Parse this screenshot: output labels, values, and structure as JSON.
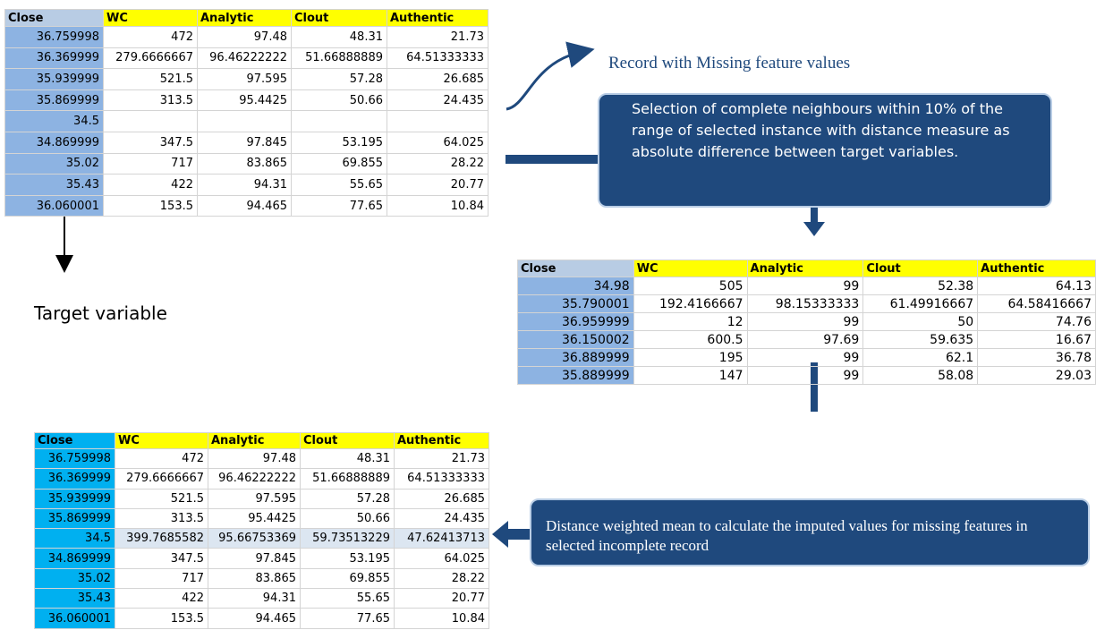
{
  "tables": [
    {
      "headers": [
        "Close",
        "WC",
        "Analytic",
        "Clout",
        "Authentic"
      ],
      "rows": [
        [
          "36.759998",
          "472",
          "97.48",
          "48.31",
          "21.73"
        ],
        [
          "36.369999",
          "279.6666667",
          "96.46222222",
          "51.66888889",
          "64.51333333"
        ],
        [
          "35.939999",
          "521.5",
          "97.595",
          "57.28",
          "26.685"
        ],
        [
          "35.869999",
          "313.5",
          "95.4425",
          "50.66",
          "24.435"
        ],
        [
          "34.5"
        ],
        [
          "34.869999",
          "347.5",
          "97.845",
          "53.195",
          "64.025"
        ],
        [
          "35.02",
          "717",
          "83.865",
          "69.855",
          "28.22"
        ],
        [
          "35.43",
          "422",
          "94.31",
          "55.65",
          "20.77"
        ],
        [
          "36.060001",
          "153.5",
          "94.465",
          "77.65",
          "10.84"
        ]
      ]
    },
    {
      "headers": [
        "Close",
        "WC",
        "Analytic",
        "Clout",
        "Authentic"
      ],
      "rows": [
        [
          "34.98",
          "505",
          "99",
          "52.38",
          "64.13"
        ],
        [
          "35.790001",
          "192.4166667",
          "98.15333333",
          "61.49916667",
          "64.58416667"
        ],
        [
          "36.959999",
          "12",
          "99",
          "50",
          "74.76"
        ],
        [
          "36.150002",
          "600.5",
          "97.69",
          "59.635",
          "16.67"
        ],
        [
          "36.889999",
          "195",
          "99",
          "62.1",
          "36.78"
        ],
        [
          "35.889999",
          "147",
          "99",
          "58.08",
          "29.03"
        ]
      ]
    },
    {
      "headers": [
        "Close",
        "WC",
        "Analytic",
        "Clout",
        "Authentic"
      ],
      "rows": [
        [
          "36.759998",
          "472",
          "97.48",
          "48.31",
          "21.73"
        ],
        [
          "36.369999",
          "279.6666667",
          "96.46222222",
          "51.66888889",
          "64.51333333"
        ],
        [
          "35.939999",
          "521.5",
          "97.595",
          "57.28",
          "26.685"
        ],
        [
          "35.869999",
          "313.5",
          "95.4425",
          "50.66",
          "24.435"
        ],
        [
          "34.5",
          "399.7685582",
          "95.66753369",
          "59.73513229",
          "47.62413713"
        ],
        [
          "34.869999",
          "347.5",
          "97.845",
          "53.195",
          "64.025"
        ],
        [
          "35.02",
          "717",
          "83.865",
          "69.855",
          "28.22"
        ],
        [
          "35.43",
          "422",
          "94.31",
          "55.65",
          "20.77"
        ],
        [
          "36.060001",
          "153.5",
          "94.465",
          "77.65",
          "10.84"
        ]
      ]
    }
  ],
  "labels": {
    "record_missing": "Record with Missing feature values",
    "target_variable": "Target variable"
  },
  "callouts": [
    "Selection of complete neighbours within 10% of the range of selected instance with distance measure as absolute difference between target variables.",
    "Distance weighted  mean to calculate the imputed values for missing features in selected incomplete record"
  ]
}
